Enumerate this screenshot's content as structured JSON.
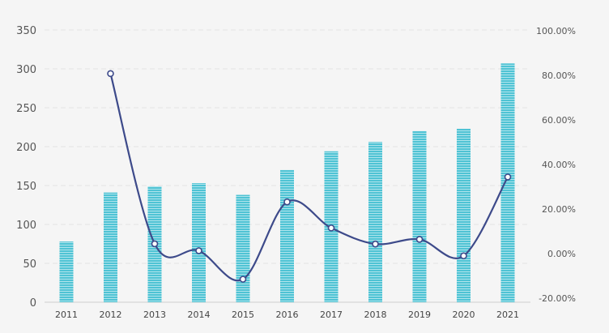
{
  "chart_data": {
    "type": "bar+line",
    "title": "",
    "xlabel": "",
    "ylabel": "",
    "categories": [
      "2011",
      "2012",
      "2013",
      "2014",
      "2015",
      "2016",
      "2017",
      "2018",
      "2019",
      "2020",
      "2021"
    ],
    "left_axis": {
      "ylim": [
        0,
        350
      ],
      "ticks": [
        0,
        50,
        100,
        150,
        200,
        250,
        300,
        350
      ],
      "tick_labels": [
        "0",
        "50",
        "100",
        "150",
        "200",
        "250",
        "300",
        "350"
      ]
    },
    "right_axis": {
      "ylim": [
        -20,
        100
      ],
      "ticks": [
        -20,
        0,
        20,
        40,
        60,
        80,
        100
      ],
      "tick_labels": [
        "-20.00%",
        "0.00%",
        "20.00%",
        "40.00%",
        "60.00%",
        "80.00%",
        "100.00%"
      ]
    },
    "series": [
      {
        "name": "bar_series",
        "type": "bar",
        "axis": "left",
        "color": "#4fc3d4",
        "values": [
          78,
          141,
          149,
          153,
          138,
          170,
          194,
          206,
          220,
          223,
          307
        ]
      },
      {
        "name": "line_series",
        "type": "line",
        "axis": "right",
        "color": "#3d4a8a",
        "values": [
          null,
          80.8,
          4.4,
          1.3,
          -11.5,
          23.2,
          11.5,
          4.3,
          6.4,
          -1.0,
          34.4
        ]
      }
    ],
    "grid": true
  }
}
